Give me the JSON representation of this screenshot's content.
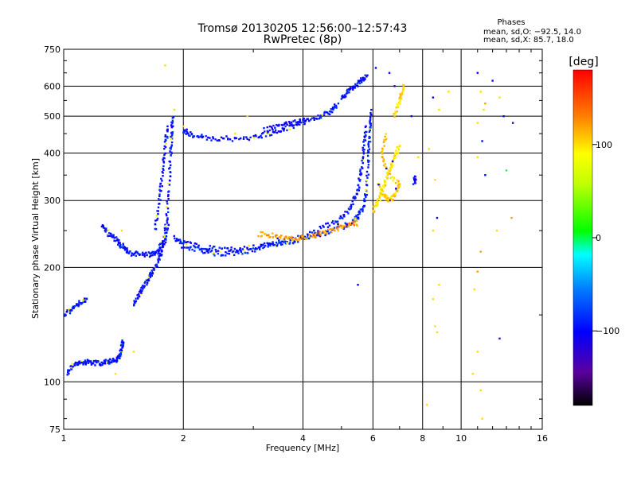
{
  "chart_data": {
    "type": "scatter",
    "title": "Tromsø 20130205 12:56:00–12:57:43",
    "subtitle": "RwPretec (8p)",
    "xlabel": "Frequency [MHz]",
    "ylabel": "Stationary phase Virtual Height [km]",
    "x_scale": "log",
    "y_scale": "log",
    "xlim": [
      1,
      16
    ],
    "ylim": [
      75,
      750
    ],
    "x_ticks": [
      1,
      2,
      4,
      6,
      8,
      10,
      16
    ],
    "x_tick_labels": [
      "1",
      "2",
      "4",
      "6",
      "8",
      "10",
      "16"
    ],
    "y_ticks": [
      75,
      100,
      200,
      300,
      400,
      500,
      600,
      750
    ],
    "y_tick_labels": [
      "75",
      "100",
      "200",
      "300",
      "400",
      "500",
      "600",
      "750"
    ],
    "grid": true,
    "annotation": {
      "heading": "Phases",
      "line_o": "mean, sd,O: −92.5, 14.0",
      "line_x": "mean, sd,X:  85.7, 18.0"
    },
    "colorbar": {
      "label": "[deg]",
      "range": [
        -180,
        180
      ],
      "ticks": [
        -100,
        0,
        100
      ],
      "tick_labels": [
        "−100",
        "0",
        "100"
      ]
    },
    "traces": [
      {
        "points": [
          [
            1.02,
            105
          ],
          [
            1.05,
            110
          ],
          [
            1.1,
            112
          ],
          [
            1.15,
            113
          ],
          [
            1.2,
            112
          ],
          [
            1.25,
            112
          ],
          [
            1.3,
            113
          ],
          [
            1.35,
            114
          ],
          [
            1.38,
            117
          ],
          [
            1.4,
            123
          ],
          [
            1.41,
            128
          ]
        ],
        "phase": -95
      },
      {
        "points": [
          [
            1.0,
            150
          ],
          [
            1.05,
            155
          ],
          [
            1.1,
            162
          ],
          [
            1.15,
            165
          ]
        ],
        "phase": -95
      },
      {
        "points": [
          [
            1.25,
            258
          ],
          [
            1.3,
            245
          ],
          [
            1.35,
            238
          ],
          [
            1.4,
            228
          ],
          [
            1.45,
            222
          ]
        ],
        "phase": -95
      },
      {
        "points": [
          [
            1.45,
            218
          ],
          [
            1.55,
            217
          ],
          [
            1.65,
            216
          ],
          [
            1.72,
            220
          ],
          [
            1.78,
            235
          ],
          [
            1.82,
            270
          ],
          [
            1.84,
            330
          ],
          [
            1.86,
            400
          ],
          [
            1.87,
            450
          ],
          [
            1.88,
            500
          ]
        ],
        "phase": -95
      },
      {
        "points": [
          [
            1.5,
            160
          ],
          [
            1.55,
            170
          ],
          [
            1.6,
            180
          ],
          [
            1.65,
            190
          ],
          [
            1.7,
            200
          ],
          [
            1.75,
            215
          ],
          [
            1.8,
            235
          ],
          [
            1.84,
            260
          ]
        ],
        "phase": -95
      },
      {
        "points": [
          [
            1.7,
            250
          ],
          [
            1.74,
            300
          ],
          [
            1.77,
            350
          ],
          [
            1.8,
            420
          ],
          [
            1.83,
            470
          ]
        ],
        "phase": -95
      },
      {
        "points": [
          [
            1.9,
            240
          ],
          [
            2.0,
            228
          ],
          [
            2.2,
            222
          ],
          [
            2.4,
            218
          ],
          [
            2.7,
            218
          ],
          [
            3.0,
            222
          ],
          [
            3.3,
            228
          ],
          [
            3.6,
            232
          ],
          [
            4.0,
            238
          ],
          [
            4.5,
            245
          ],
          [
            5.0,
            255
          ],
          [
            5.3,
            262
          ],
          [
            5.5,
            272
          ],
          [
            5.7,
            290
          ],
          [
            5.8,
            330
          ],
          [
            5.85,
            400
          ],
          [
            5.9,
            460
          ],
          [
            5.92,
            520
          ]
        ],
        "phase": -90
      },
      {
        "points": [
          [
            2.0,
            232
          ],
          [
            2.3,
            225
          ],
          [
            2.6,
            222
          ],
          [
            3.0,
            226
          ],
          [
            3.5,
            233
          ],
          [
            4.0,
            240
          ],
          [
            4.5,
            255
          ],
          [
            5.0,
            270
          ],
          [
            5.3,
            290
          ],
          [
            5.5,
            320
          ],
          [
            5.6,
            360
          ],
          [
            5.7,
            420
          ],
          [
            5.78,
            470
          ]
        ],
        "phase": -95
      },
      {
        "points": [
          [
            3.1,
            245
          ],
          [
            3.4,
            242
          ],
          [
            3.7,
            238
          ],
          [
            4.0,
            240
          ],
          [
            4.4,
            245
          ],
          [
            4.8,
            252
          ],
          [
            5.2,
            258
          ],
          [
            5.5,
            262
          ]
        ],
        "phase": 120
      },
      {
        "points": [
          [
            2.0,
            460
          ],
          [
            2.1,
            445
          ],
          [
            2.3,
            438
          ],
          [
            2.6,
            436
          ],
          [
            3.0,
            440
          ],
          [
            3.3,
            450
          ],
          [
            3.6,
            462
          ],
          [
            4.0,
            480
          ],
          [
            4.4,
            498
          ],
          [
            4.7,
            515
          ],
          [
            4.9,
            540
          ]
        ],
        "phase": -95
      },
      {
        "points": [
          [
            3.2,
            462
          ],
          [
            3.5,
            470
          ],
          [
            3.8,
            480
          ],
          [
            4.1,
            495
          ]
        ],
        "phase": -100
      },
      {
        "points": [
          [
            5.0,
            560
          ],
          [
            5.2,
            580
          ],
          [
            5.4,
            600
          ],
          [
            5.6,
            620
          ],
          [
            5.8,
            640
          ]
        ],
        "phase": -95
      },
      {
        "points": [
          [
            6.2,
            330
          ],
          [
            6.4,
            310
          ],
          [
            6.6,
            300
          ],
          [
            6.8,
            310
          ],
          [
            7.0,
            330
          ],
          [
            6.5,
            360
          ],
          [
            6.3,
            400
          ],
          [
            6.5,
            450
          ]
        ],
        "phase": 105
      },
      {
        "points": [
          [
            6.0,
            280
          ],
          [
            6.2,
            300
          ],
          [
            6.4,
            330
          ],
          [
            6.6,
            360
          ],
          [
            6.8,
            390
          ],
          [
            7.0,
            420
          ]
        ],
        "phase": 100
      },
      {
        "points": [
          [
            6.8,
            500
          ],
          [
            7.0,
            550
          ],
          [
            7.1,
            580
          ],
          [
            7.2,
            600
          ]
        ],
        "phase": 100
      },
      {
        "points": [
          [
            7.6,
            335
          ],
          [
            7.7,
            345
          ]
        ],
        "phase": -95
      }
    ],
    "scatter_points": [
      [
        1.8,
        680,
        100
      ],
      [
        1.9,
        520,
        100
      ],
      [
        2.0,
        470,
        100
      ],
      [
        2.7,
        450,
        100
      ],
      [
        2.9,
        500,
        100
      ],
      [
        1.5,
        120,
        100
      ],
      [
        1.35,
        105,
        100
      ],
      [
        1.4,
        250,
        100
      ],
      [
        6.1,
        670,
        -100
      ],
      [
        6.6,
        650,
        -100
      ],
      [
        6.8,
        600,
        -110
      ],
      [
        7.5,
        500,
        -100
      ],
      [
        7.8,
        390,
        100
      ],
      [
        8.5,
        560,
        -100
      ],
      [
        8.8,
        520,
        100
      ],
      [
        8.3,
        410,
        100
      ],
      [
        8.6,
        340,
        100
      ],
      [
        8.7,
        270,
        -100
      ],
      [
        8.5,
        250,
        100
      ],
      [
        8.8,
        180,
        100
      ],
      [
        8.5,
        165,
        100
      ],
      [
        8.6,
        140,
        100
      ],
      [
        8.7,
        135,
        100
      ],
      [
        8.2,
        87,
        100
      ],
      [
        9.3,
        580,
        100
      ],
      [
        11.0,
        650,
        -100
      ],
      [
        11.2,
        580,
        100
      ],
      [
        11.5,
        540,
        120
      ],
      [
        11.4,
        520,
        100
      ],
      [
        11.0,
        480,
        100
      ],
      [
        11.3,
        430,
        -100
      ],
      [
        11.0,
        390,
        100
      ],
      [
        11.5,
        350,
        -100
      ],
      [
        12.0,
        620,
        -100
      ],
      [
        12.5,
        560,
        100
      ],
      [
        12.8,
        500,
        -100
      ],
      [
        13.5,
        480,
        -130
      ],
      [
        13.0,
        360,
        0
      ],
      [
        13.4,
        270,
        120
      ],
      [
        11.2,
        220,
        120
      ],
      [
        11.0,
        195,
        120
      ],
      [
        10.8,
        175,
        100
      ],
      [
        12.3,
        250,
        100
      ],
      [
        12.5,
        130,
        -130
      ],
      [
        11.0,
        120,
        100
      ],
      [
        10.7,
        105,
        100
      ],
      [
        11.2,
        95,
        100
      ],
      [
        11.3,
        80,
        100
      ],
      [
        5.5,
        180,
        -100
      ],
      [
        4.9,
        260,
        -180
      ]
    ]
  }
}
